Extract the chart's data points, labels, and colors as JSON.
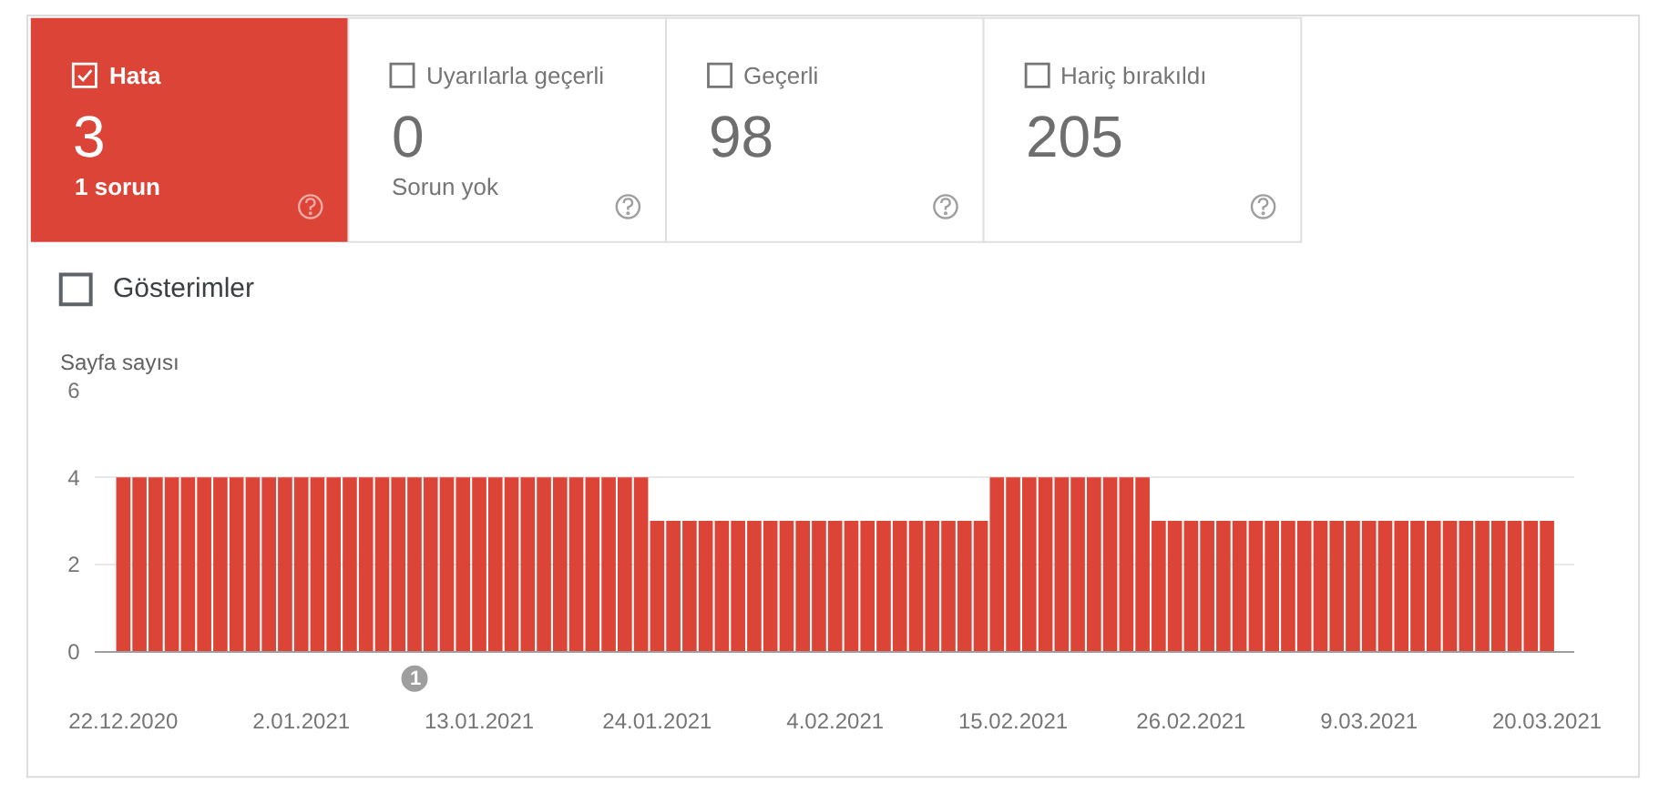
{
  "chart_data": [
    {
      "type": "other",
      "title": "Hata",
      "values": [
        3
      ],
      "data_labels": true,
      "annotations": [
        "1 sorun"
      ],
      "color": "#db4437"
    },
    {
      "type": "other",
      "title": "Uyarılarla geçerli",
      "values": [
        0
      ],
      "data_labels": true,
      "annotations": [
        "Sorun yok"
      ]
    },
    {
      "type": "other",
      "title": "Geçerli",
      "values": [
        98
      ],
      "data_labels": true
    },
    {
      "type": "other",
      "title": "Hariç bırakıldı",
      "values": [
        205
      ],
      "data_labels": true
    },
    {
      "type": "bar",
      "ylabel": "Sayfa sayısı",
      "color": "#db4437",
      "x": [
        "2020-12-22",
        "2020-12-23",
        "2020-12-24",
        "2020-12-25",
        "2020-12-26",
        "2020-12-27",
        "2020-12-28",
        "2020-12-29",
        "2020-12-30",
        "2020-12-31",
        "2021-01-01",
        "2021-01-02",
        "2021-01-03",
        "2021-01-04",
        "2021-01-05",
        "2021-01-06",
        "2021-01-07",
        "2021-01-08",
        "2021-01-09",
        "2021-01-10",
        "2021-01-11",
        "2021-01-12",
        "2021-01-13",
        "2021-01-14",
        "2021-01-15",
        "2021-01-16",
        "2021-01-17",
        "2021-01-18",
        "2021-01-19",
        "2021-01-20",
        "2021-01-21",
        "2021-01-22",
        "2021-01-23",
        "2021-01-24",
        "2021-01-25",
        "2021-01-26",
        "2021-01-27",
        "2021-01-28",
        "2021-01-29",
        "2021-01-30",
        "2021-01-31",
        "2021-02-01",
        "2021-02-02",
        "2021-02-03",
        "2021-02-04",
        "2021-02-05",
        "2021-02-06",
        "2021-02-07",
        "2021-02-08",
        "2021-02-09",
        "2021-02-10",
        "2021-02-11",
        "2021-02-12",
        "2021-02-13",
        "2021-02-14",
        "2021-02-15",
        "2021-02-16",
        "2021-02-17",
        "2021-02-18",
        "2021-02-19",
        "2021-02-20",
        "2021-02-21",
        "2021-02-22",
        "2021-02-23",
        "2021-02-24",
        "2021-02-25",
        "2021-02-26",
        "2021-02-27",
        "2021-02-28",
        "2021-03-01",
        "2021-03-02",
        "2021-03-03",
        "2021-03-04",
        "2021-03-05",
        "2021-03-06",
        "2021-03-07",
        "2021-03-08",
        "2021-03-09",
        "2021-03-10",
        "2021-03-11",
        "2021-03-12",
        "2021-03-13",
        "2021-03-14",
        "2021-03-15",
        "2021-03-16",
        "2021-03-17",
        "2021-03-18",
        "2021-03-19",
        "2021-03-20"
      ],
      "values": [
        4,
        4,
        4,
        4,
        4,
        4,
        4,
        4,
        4,
        4,
        4,
        4,
        4,
        4,
        4,
        4,
        4,
        4,
        4,
        4,
        4,
        4,
        4,
        4,
        4,
        4,
        4,
        4,
        4,
        4,
        4,
        4,
        4,
        3,
        3,
        3,
        3,
        3,
        3,
        3,
        3,
        3,
        3,
        3,
        3,
        3,
        3,
        3,
        3,
        3,
        3,
        3,
        3,
        3,
        4,
        4,
        4,
        4,
        4,
        4,
        4,
        4,
        4,
        4,
        3,
        3,
        3,
        3,
        3,
        3,
        3,
        3,
        3,
        3,
        3,
        3,
        3,
        3,
        3,
        3,
        3,
        3,
        3,
        3,
        3,
        3,
        3,
        3,
        3
      ],
      "xlim": [
        "2020-12-20T05:00",
        "2021-03-21T17:00"
      ],
      "xticks": [
        {
          "value": "2020-12-22",
          "label": "22.12.2020"
        },
        {
          "value": "2021-01-02",
          "label": "2.01.2021"
        },
        {
          "value": "2021-01-13",
          "label": "13.01.2021"
        },
        {
          "value": "2021-01-24",
          "label": "24.01.2021"
        },
        {
          "value": "2021-02-04",
          "label": "4.02.2021"
        },
        {
          "value": "2021-02-15",
          "label": "15.02.2021"
        },
        {
          "value": "2021-02-26",
          "label": "26.02.2021"
        },
        {
          "value": "2021-03-09",
          "label": "9.03.2021"
        },
        {
          "value": "2021-03-20",
          "label": "20.03.2021"
        }
      ],
      "ylim": [
        0,
        6
      ],
      "yticks": [
        0,
        2,
        4,
        6
      ],
      "grid": "y",
      "annotations": [
        "Gösterimler",
        "1"
      ]
    }
  ]
}
